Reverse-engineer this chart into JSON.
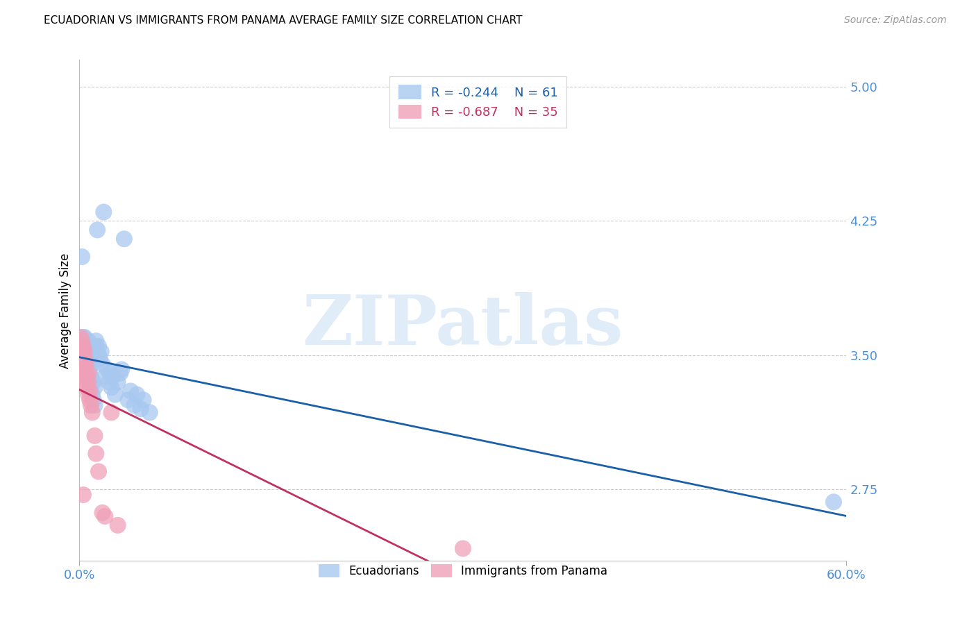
{
  "title": "ECUADORIAN VS IMMIGRANTS FROM PANAMA AVERAGE FAMILY SIZE CORRELATION CHART",
  "source": "Source: ZipAtlas.com",
  "ylabel": "Average Family Size",
  "xlim": [
    0.0,
    0.6
  ],
  "ylim": [
    2.35,
    5.15
  ],
  "yticks": [
    2.75,
    3.5,
    4.25,
    5.0
  ],
  "xticks": [
    0.0,
    0.6
  ],
  "xtick_labels": [
    "0.0%",
    "60.0%"
  ],
  "background_color": "#ffffff",
  "grid_color": "#cccccc",
  "blue_color": "#a8c8f0",
  "pink_color": "#f0a0b8",
  "blue_line_color": "#1a5fa8",
  "pink_line_color": "#c03060",
  "tick_color": "#4a90d9",
  "legend_blue_label": "R = -0.244    N = 61",
  "legend_pink_label": "R = -0.687    N = 35",
  "legend_blue_entry": "Ecuadorians",
  "legend_pink_entry": "Immigrants from Panama",
  "watermark": "ZIPatlas",
  "ecuadorians_x": [
    0.001,
    0.002,
    0.002,
    0.003,
    0.003,
    0.003,
    0.003,
    0.004,
    0.004,
    0.004,
    0.004,
    0.005,
    0.005,
    0.005,
    0.006,
    0.006,
    0.006,
    0.006,
    0.007,
    0.007,
    0.007,
    0.008,
    0.008,
    0.008,
    0.009,
    0.009,
    0.01,
    0.01,
    0.01,
    0.011,
    0.011,
    0.012,
    0.012,
    0.013,
    0.013,
    0.014,
    0.015,
    0.015,
    0.016,
    0.017,
    0.018,
    0.019,
    0.02,
    0.022,
    0.023,
    0.024,
    0.025,
    0.026,
    0.028,
    0.03,
    0.032,
    0.033,
    0.035,
    0.038,
    0.04,
    0.043,
    0.045,
    0.048,
    0.05,
    0.055,
    0.59
  ],
  "ecuadorians_y": [
    3.55,
    3.5,
    4.05,
    3.52,
    3.55,
    3.58,
    3.6,
    3.42,
    3.5,
    3.55,
    3.6,
    3.4,
    3.48,
    3.55,
    3.38,
    3.45,
    3.5,
    3.55,
    3.35,
    3.42,
    3.58,
    3.32,
    3.4,
    3.48,
    3.3,
    3.38,
    3.28,
    3.35,
    3.45,
    3.25,
    3.35,
    3.22,
    3.32,
    3.55,
    3.58,
    4.2,
    3.5,
    3.55,
    3.48,
    3.52,
    3.45,
    4.3,
    3.38,
    3.42,
    3.35,
    3.4,
    3.32,
    3.38,
    3.28,
    3.35,
    3.4,
    3.42,
    4.15,
    3.25,
    3.3,
    3.22,
    3.28,
    3.2,
    3.25,
    3.18,
    2.68
  ],
  "panama_x": [
    0.001,
    0.001,
    0.002,
    0.002,
    0.002,
    0.002,
    0.003,
    0.003,
    0.003,
    0.003,
    0.003,
    0.004,
    0.004,
    0.004,
    0.004,
    0.005,
    0.005,
    0.005,
    0.006,
    0.006,
    0.007,
    0.007,
    0.007,
    0.008,
    0.008,
    0.009,
    0.01,
    0.012,
    0.013,
    0.015,
    0.018,
    0.02,
    0.025,
    0.03,
    0.3
  ],
  "panama_y": [
    3.55,
    3.6,
    3.48,
    3.52,
    3.55,
    3.58,
    3.42,
    3.45,
    3.5,
    3.55,
    2.72,
    3.38,
    3.42,
    3.48,
    3.52,
    3.35,
    3.4,
    3.45,
    3.32,
    3.38,
    3.28,
    3.35,
    3.4,
    3.25,
    3.3,
    3.22,
    3.18,
    3.05,
    2.95,
    2.85,
    2.62,
    2.6,
    3.18,
    2.55,
    2.42
  ]
}
